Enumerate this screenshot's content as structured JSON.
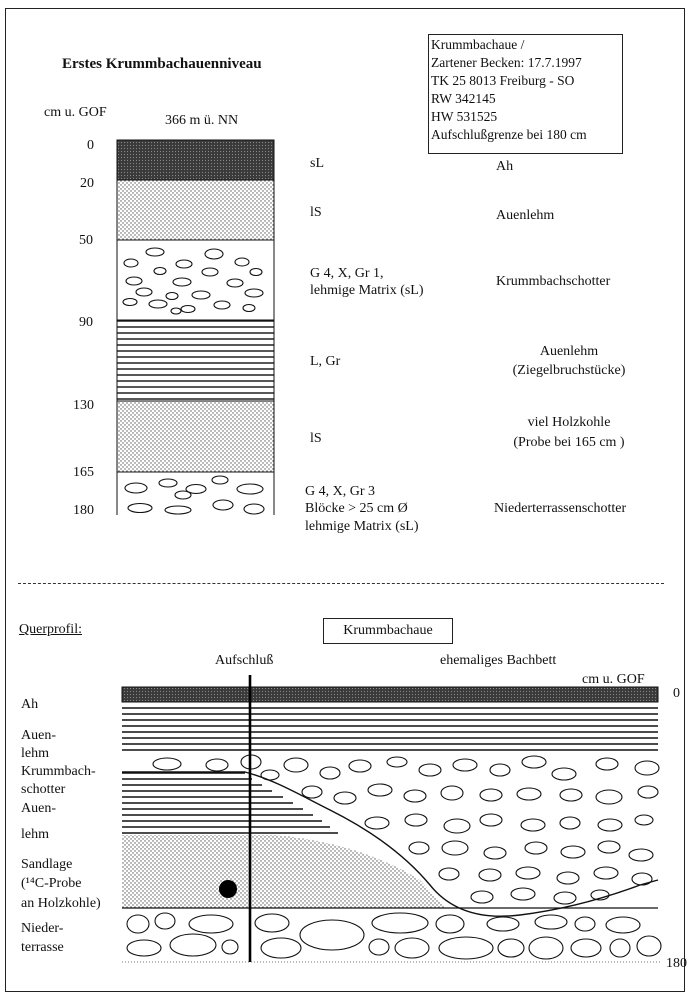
{
  "profile": {
    "title": "Erstes Krummbachauenniveau",
    "depth_header": "cm u. GOF",
    "elevation": "366 m  ü. NN",
    "depths": [
      "0",
      "20",
      "50",
      "90",
      "130",
      "165",
      "180"
    ],
    "info_box": [
      "Krummbachaue /",
      "Zartener Becken: 17.7.1997",
      "TK 25 8013 Freiburg - SO",
      "RW 342145",
      "HW 531525",
      "Aufschlußgrenze bei 180 cm"
    ],
    "layers": [
      {
        "texture": "sL",
        "description": "Ah"
      },
      {
        "texture": "lS",
        "description": "Auenlehm"
      },
      {
        "texture_lines": [
          "G 4, X, Gr 1,",
          "lehmige Matrix (sL)"
        ],
        "description": "Krummbachschotter"
      },
      {
        "texture": "L, Gr",
        "description_lines": [
          "Auenlehm",
          "(Ziegelbruchstücke)"
        ]
      },
      {
        "texture": "lS",
        "description_lines": [
          "viel Holzkohle",
          "(Probe bei 165 cm )"
        ]
      },
      {
        "texture_lines": [
          "G 4, X, Gr 3",
          "Blöcke >  25 cm Ø",
          "lehmige Matrix (sL)"
        ],
        "description": "Niederterrassenschotter"
      }
    ]
  },
  "cross_section": {
    "heading": "Querprofil:",
    "label_box": "Krummbachaue",
    "aufschluss_label": "Aufschluß",
    "bachbett_label": "ehemaliges Bachbett",
    "depth_header": "cm u. GOF",
    "depth_top": "0",
    "depth_bottom": "180",
    "legend": [
      {
        "lines": [
          "Ah"
        ]
      },
      {
        "lines": [
          "Auen-",
          "lehm"
        ]
      },
      {
        "lines": [
          "Krummbach-",
          "schotter"
        ]
      },
      {
        "lines": [
          "Auen-",
          "lehm"
        ]
      },
      {
        "lines": [
          "Sandlage",
          "(¹⁴C-Probe",
          "an Holzkohle)"
        ]
      },
      {
        "lines": [
          "Nieder-",
          "terrasse"
        ]
      }
    ]
  }
}
